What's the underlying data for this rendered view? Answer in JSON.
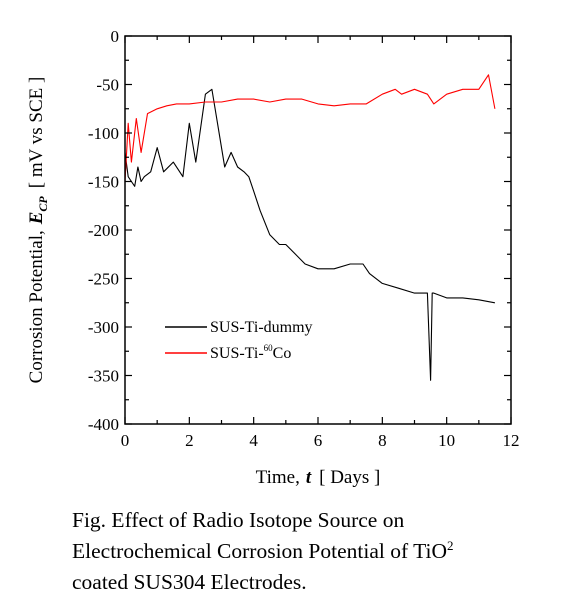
{
  "chart_data": {
    "type": "line",
    "xlabel_main": "Time,",
    "xlabel_symbol": "t",
    "xlabel_unit": "[ Days ]",
    "ylabel_main": "Corrosion Potential,",
    "ylabel_symbol": "E",
    "ylabel_subscript": "CP",
    "ylabel_unit": "[ mV vs SCE ]",
    "xlim": [
      0,
      12
    ],
    "ylim": [
      -400,
      0
    ],
    "xticks": [
      "0",
      "2",
      "4",
      "6",
      "8",
      "10",
      "12"
    ],
    "yticks": [
      "0",
      "-50",
      "-100",
      "-150",
      "-200",
      "-250",
      "-300",
      "-350",
      "-400"
    ],
    "legend_position": "lower-left",
    "grid": false,
    "series": [
      {
        "name": "SUS-Ti-dummy",
        "color": "#000000",
        "x": [
          0,
          0.1,
          0.2,
          0.3,
          0.4,
          0.5,
          0.6,
          0.8,
          1.0,
          1.2,
          1.5,
          1.8,
          2.0,
          2.2,
          2.5,
          2.7,
          2.9,
          3.1,
          3.3,
          3.5,
          3.7,
          3.85,
          4.0,
          4.2,
          4.5,
          4.8,
          5.0,
          5.3,
          5.6,
          6.0,
          6.5,
          7.0,
          7.4,
          7.6,
          8.0,
          8.5,
          9.0,
          9.4,
          9.5,
          9.55,
          9.6,
          10.0,
          10.5,
          11.0,
          11.5
        ],
        "y": [
          -120,
          -145,
          -150,
          -155,
          -135,
          -150,
          -145,
          -140,
          -115,
          -140,
          -130,
          -145,
          -90,
          -130,
          -60,
          -55,
          -95,
          -135,
          -120,
          -135,
          -140,
          -145,
          -160,
          -180,
          -205,
          -215,
          -215,
          -225,
          -235,
          -240,
          -240,
          -235,
          -235,
          -245,
          -255,
          -260,
          -265,
          -265,
          -355,
          -265,
          -265,
          -270,
          -270,
          -272,
          -275
        ]
      },
      {
        "name": "SUS-Ti-",
        "name_sup": "60",
        "name_suffix": "Co",
        "color": "#ff0000",
        "x": [
          0,
          0.1,
          0.2,
          0.35,
          0.5,
          0.7,
          1.0,
          1.3,
          1.6,
          2.0,
          2.5,
          3.0,
          3.5,
          4.0,
          4.5,
          5.0,
          5.5,
          6.0,
          6.5,
          7.0,
          7.5,
          8.0,
          8.4,
          8.6,
          9.0,
          9.4,
          9.6,
          10.0,
          10.5,
          11.0,
          11.3,
          11.5
        ],
        "y": [
          -150,
          -90,
          -130,
          -85,
          -120,
          -80,
          -75,
          -72,
          -70,
          -70,
          -68,
          -68,
          -65,
          -65,
          -68,
          -65,
          -65,
          -70,
          -72,
          -70,
          -70,
          -60,
          -55,
          -60,
          -55,
          -60,
          -70,
          -60,
          -55,
          -55,
          -40,
          -75
        ]
      }
    ]
  },
  "caption": {
    "line1": "Fig. Effect of Radio Isotope Source on",
    "line2_prefix": "Electrochemical Corrosion Potential of TiO",
    "line2_sup": "2",
    "line3": "coated SUS304 Electrodes."
  }
}
